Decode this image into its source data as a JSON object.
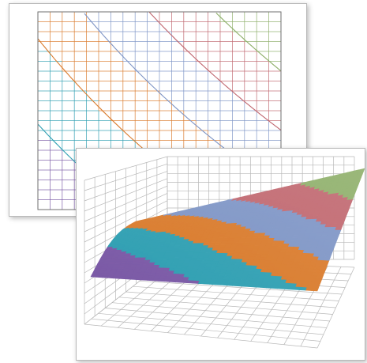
{
  "chart_data": [
    {
      "type": "contour",
      "xlim": [
        0,
        1
      ],
      "ylim": [
        0,
        1
      ],
      "grid": true,
      "colormap": [
        "#7b5aa6",
        "#2f9fb2",
        "#d97a2b",
        "#7d94c5",
        "#c0666e",
        "#8dae68"
      ],
      "contour_levels": 6
    },
    {
      "type": "surface",
      "xlim": [
        0,
        1
      ],
      "ylim": [
        0,
        1
      ],
      "grid": true,
      "bands": 6,
      "colormap": [
        "#7b5aa6",
        "#2f9fb2",
        "#d97a2b",
        "#7d94c5",
        "#c0666e",
        "#8dae68"
      ]
    }
  ]
}
